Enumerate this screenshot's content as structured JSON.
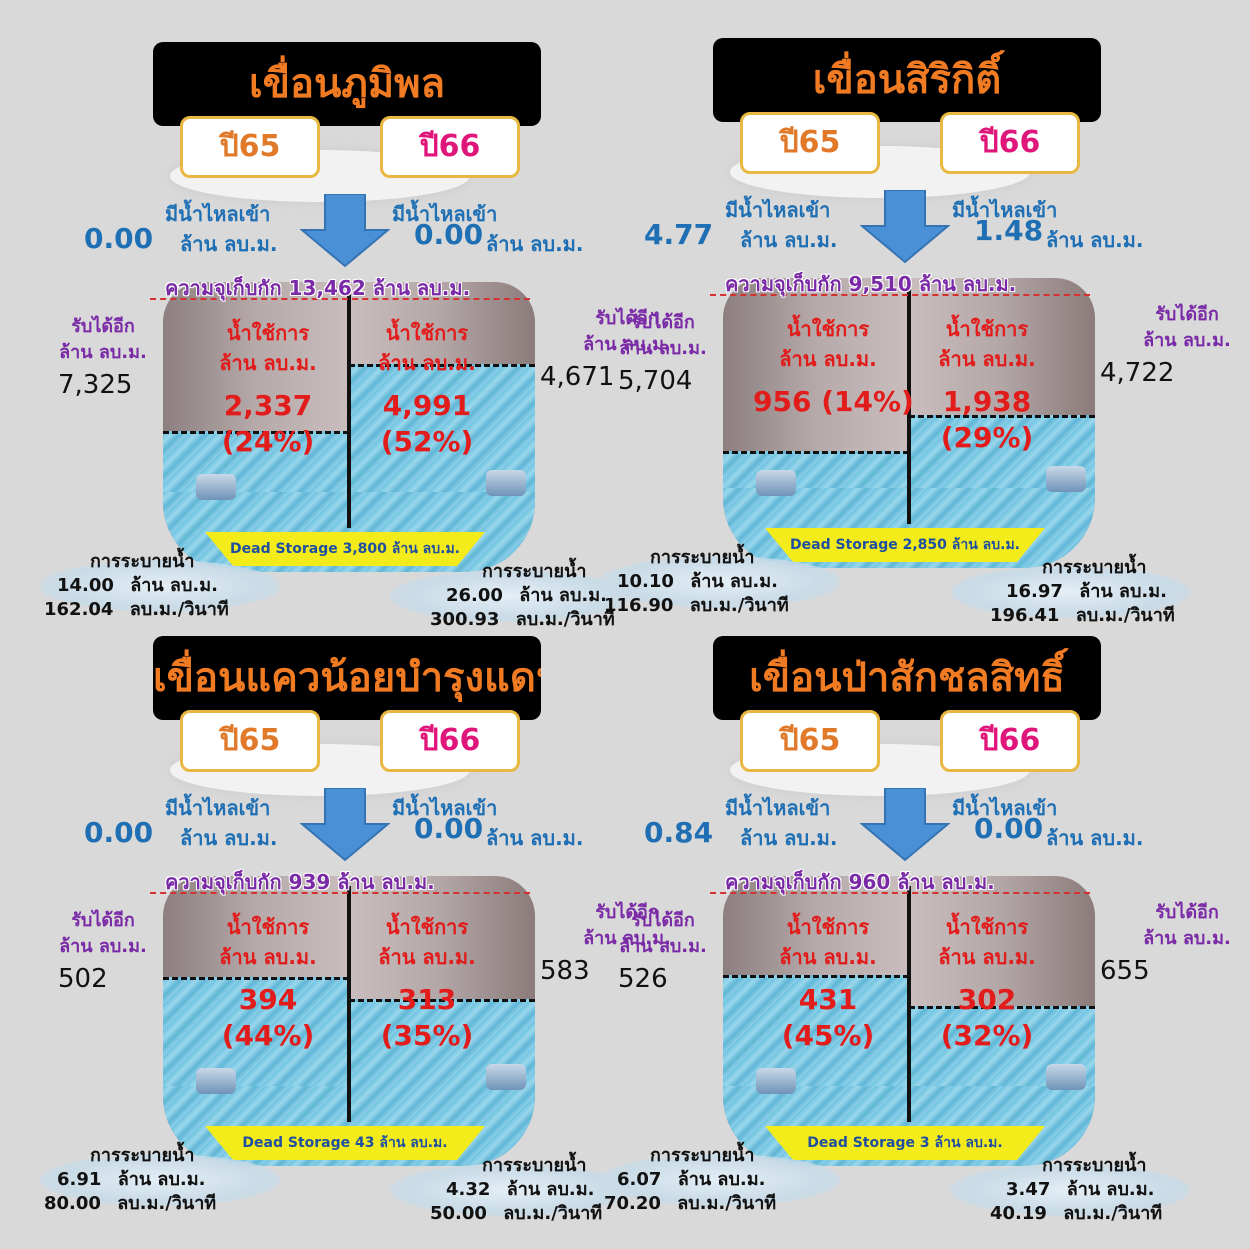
{
  "labels": {
    "year_a": "ปี65",
    "year_b": "ปี66",
    "inflow": "มีน้ำไหลเข้า",
    "mcm": "ล้าน ลบ.ม.",
    "capacity_prefix": "ความจุเก็บกัก",
    "capacity_suffix": "ล้าน ลบ.ม.",
    "can_receive": "รับได้อีก",
    "usable": "น้ำใช้การ",
    "release": "การระบายน้ำ",
    "per_second": "ลบ.ม./วินาที",
    "dead_storage_prefix": "Dead Storage"
  },
  "dams": [
    {
      "name": "เขื่อนภูมิพล",
      "capacity": "13,462",
      "dead_storage": "3,800",
      "inflow_a": "0.00",
      "inflow_b": "0.00",
      "receive_a": "7,325",
      "receive_b": "4,671",
      "usable_a": "2,337",
      "usable_a_pct": "(24%)",
      "usable_b": "4,991",
      "usable_b_pct": "(52%)",
      "fill_a": 0.24,
      "fill_b": 0.52,
      "release_a_mcm": "14.00",
      "release_a_cms": "162.04",
      "release_b_mcm": "26.00",
      "release_b_cms": "300.93"
    },
    {
      "name": "เขื่อนสิริกิติ์",
      "capacity": "9,510",
      "dead_storage": "2,850",
      "inflow_a": "4.77",
      "inflow_b": "1.48",
      "receive_a": "5,704",
      "receive_b": "4,722",
      "usable_a": "956 (14%)",
      "usable_a_pct": "",
      "usable_b": "1,938",
      "usable_b_pct": "(29%)",
      "fill_a": 0.14,
      "fill_b": 0.29,
      "release_a_mcm": "10.10",
      "release_a_cms": "116.90",
      "release_b_mcm": "16.97",
      "release_b_cms": "196.41"
    },
    {
      "name": "เขื่อนแควน้อยบำรุงแดน",
      "capacity": "939",
      "dead_storage": "43",
      "inflow_a": "0.00",
      "inflow_b": "0.00",
      "receive_a": "502",
      "receive_b": "583",
      "usable_a": "394",
      "usable_a_pct": "(44%)",
      "usable_b": "313",
      "usable_b_pct": "(35%)",
      "fill_a": 0.44,
      "fill_b": 0.35,
      "release_a_mcm": "6.91",
      "release_a_cms": "80.00",
      "release_b_mcm": "4.32",
      "release_b_cms": "50.00"
    },
    {
      "name": "เขื่อนป่าสักชลสิทธิ์",
      "capacity": "960",
      "dead_storage": "3",
      "inflow_a": "0.84",
      "inflow_b": "0.00",
      "receive_a": "526",
      "receive_b": "655",
      "usable_a": "431",
      "usable_a_pct": "(45%)",
      "usable_b": "302",
      "usable_b_pct": "(32%)",
      "fill_a": 0.45,
      "fill_b": 0.32,
      "release_a_mcm": "6.07",
      "release_a_cms": "70.20",
      "release_b_mcm": "3.47",
      "release_b_cms": "40.19"
    }
  ]
}
